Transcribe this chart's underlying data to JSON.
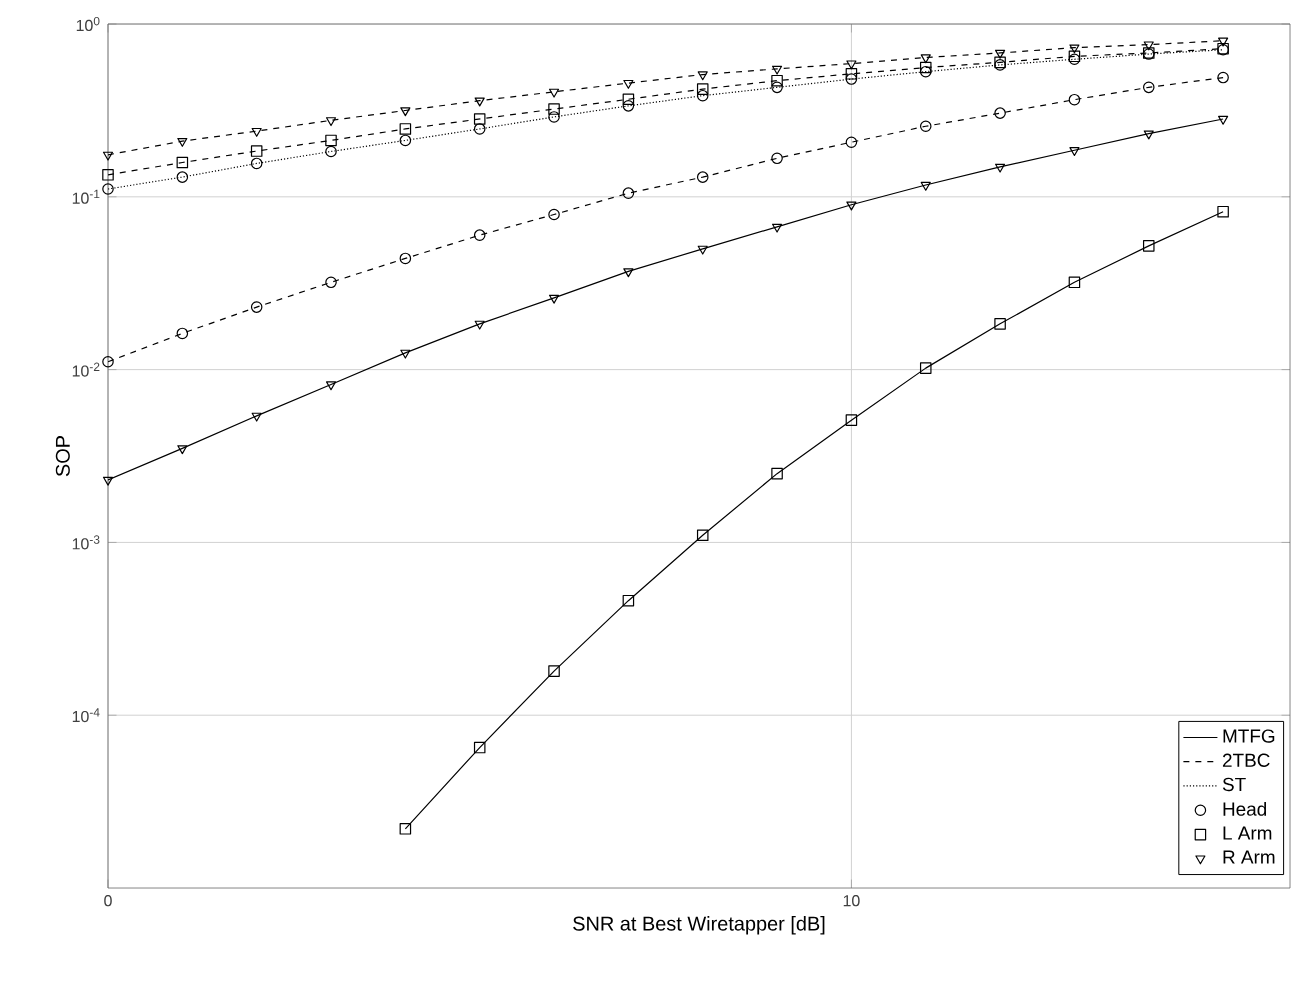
{
  "chart_data": {
    "type": "line",
    "xlabel": "SNR at Best Wiretapper [dB]",
    "ylabel": "SOP",
    "x": [
      0,
      1,
      2,
      3,
      4,
      5,
      6,
      7,
      8,
      9,
      10,
      11,
      12,
      13,
      14,
      15
    ],
    "xlim": [
      0,
      15.9
    ],
    "xticks": [
      0,
      10
    ],
    "ylim": [
      1e-05,
      1
    ],
    "log": "y",
    "yticks": [
      {
        "value": 0.0001,
        "label": "10$^{-4}$"
      },
      {
        "value": 0.001,
        "label": "10$^{-3}$"
      },
      {
        "value": 0.01,
        "label": "10$^{-2}$"
      },
      {
        "value": 0.1,
        "label": "10$^{-1}$"
      },
      {
        "value": 1,
        "label": "10$^{0}$"
      }
    ],
    "grid": true,
    "legend": "bottom right",
    "series": [
      {
        "color": "#000000",
        "line_style": "solid",
        "marker": "square",
        "values": [
          null,
          null,
          null,
          null,
          2.2e-05,
          6.5e-05,
          0.00018,
          0.00046,
          0.0011,
          0.0025,
          0.0051,
          0.0102,
          0.0184,
          0.032,
          0.052,
          0.082
        ]
      },
      {
        "color": "#000000",
        "line_style": "solid",
        "marker": "triangle",
        "values": [
          0.0023,
          0.0035,
          0.0054,
          0.0082,
          0.0125,
          0.0184,
          0.026,
          0.037,
          0.05,
          0.067,
          0.09,
          0.117,
          0.149,
          0.186,
          0.232,
          0.282
        ]
      },
      {
        "color": "#000000",
        "line_style": "dashed",
        "marker": "circle",
        "values": [
          0.0111,
          0.0162,
          0.023,
          0.032,
          0.044,
          0.06,
          0.079,
          0.105,
          0.13,
          0.167,
          0.207,
          0.256,
          0.305,
          0.365,
          0.43,
          0.49
        ]
      },
      {
        "color": "#000000",
        "line_style": "dashed",
        "marker": "square",
        "values": [
          0.134,
          0.158,
          0.184,
          0.212,
          0.247,
          0.282,
          0.322,
          0.367,
          0.42,
          0.47,
          0.515,
          0.56,
          0.6,
          0.65,
          0.68,
          0.72
        ]
      },
      {
        "color": "#000000",
        "line_style": "dashed",
        "marker": "triangle",
        "values": [
          0.175,
          0.21,
          0.24,
          0.277,
          0.316,
          0.36,
          0.405,
          0.455,
          0.51,
          0.55,
          0.59,
          0.64,
          0.68,
          0.73,
          0.76,
          0.8
        ]
      },
      {
        "color": "#000000",
        "line_style": "dotted",
        "marker": "circle",
        "values": [
          0.111,
          0.13,
          0.156,
          0.183,
          0.212,
          0.247,
          0.29,
          0.336,
          0.385,
          0.43,
          0.48,
          0.53,
          0.58,
          0.625,
          0.67,
          0.71
        ]
      },
      {
        "name": "MTFG",
        "color": "#000000",
        "line_style": "solid",
        "marker": "none",
        "values": [
          null,
          null,
          null,
          null,
          null,
          null,
          null,
          null,
          null,
          null,
          null,
          null,
          null,
          null,
          null,
          null
        ]
      },
      {
        "name": "2TBC",
        "color": "#000000",
        "line_style": "dashed",
        "marker": "none",
        "values": [
          null,
          null,
          null,
          null,
          null,
          null,
          null,
          null,
          null,
          null,
          null,
          null,
          null,
          null,
          null,
          null
        ]
      },
      {
        "name": "ST",
        "color": "#000000",
        "line_style": "dotted",
        "marker": "none",
        "values": [
          null,
          null,
          null,
          null,
          null,
          null,
          null,
          null,
          null,
          null,
          null,
          null,
          null,
          null,
          null,
          null
        ]
      },
      {
        "name": "Head",
        "color": "#000000",
        "line_style": "none",
        "marker": "circle",
        "values": [
          null,
          null,
          null,
          null,
          null,
          null,
          null,
          null,
          null,
          null,
          null,
          null,
          null,
          null,
          null,
          null
        ]
      },
      {
        "name": "L Arm",
        "color": "#000000",
        "line_style": "none",
        "marker": "square",
        "values": [
          null,
          null,
          null,
          null,
          null,
          null,
          null,
          null,
          null,
          null,
          null,
          null,
          null,
          null,
          null,
          null
        ]
      },
      {
        "name": "R Arm",
        "color": "#000000",
        "line_style": "none",
        "marker": "triangle",
        "values": [
          null,
          null,
          null,
          null,
          null,
          null,
          null,
          null,
          null,
          null,
          null,
          null,
          null,
          null,
          null,
          null
        ]
      }
    ]
  }
}
